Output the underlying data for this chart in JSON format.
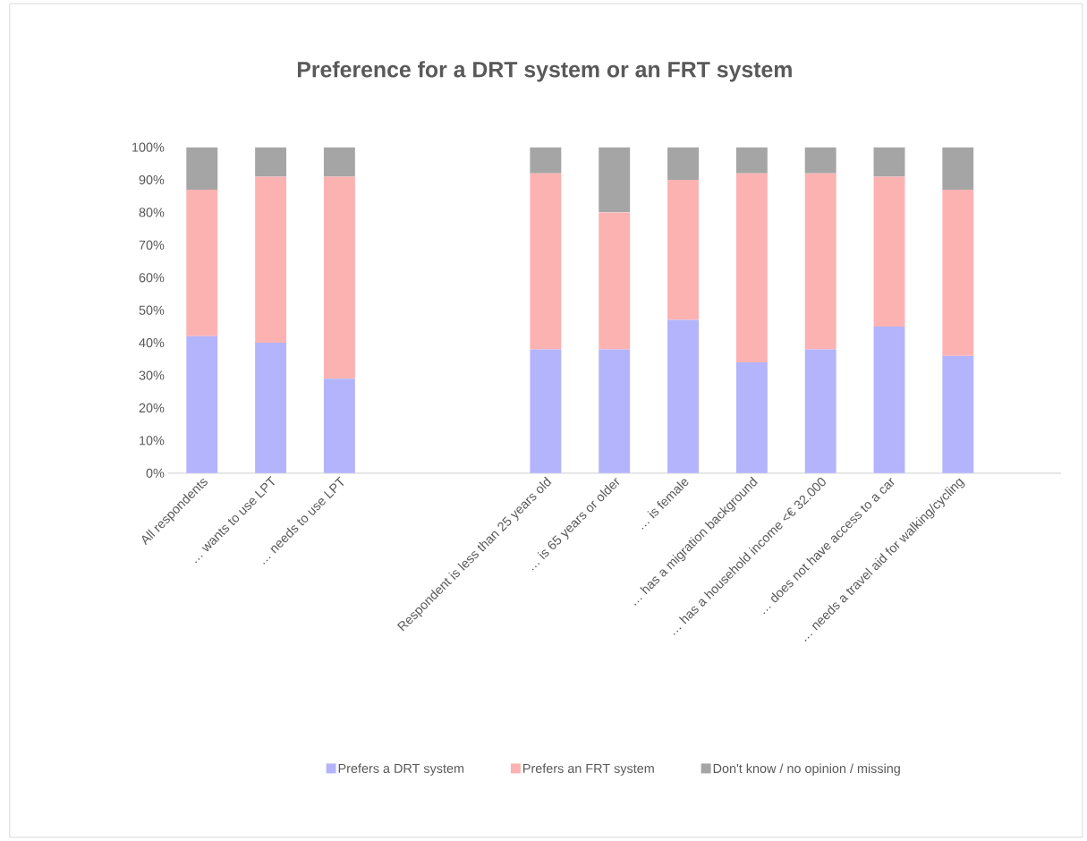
{
  "chart_data": {
    "type": "bar",
    "stacked": true,
    "title": "Preference for a DRT system or an FRT system",
    "categories": [
      "All respondents",
      "… wants to use LPT",
      "… needs to use LPT",
      null,
      null,
      "Respondent is less than 25 years old",
      "… is 65 years or older",
      "… is female",
      "… has a migration background",
      "… has a household income <€ 32.000",
      "… does not have access to a car",
      "… needs a travel aid for walking/cycling",
      null
    ],
    "series": [
      {
        "name": "Prefers a DRT system",
        "color": "#b4b4fc",
        "values": [
          42,
          40,
          29,
          null,
          null,
          38,
          38,
          47,
          34,
          38,
          45,
          36,
          null
        ]
      },
      {
        "name": "Prefers an FRT system",
        "color": "#fdb2b2",
        "values": [
          45,
          51,
          62,
          null,
          null,
          54,
          42,
          43,
          58,
          54,
          46,
          51,
          null
        ]
      },
      {
        "name": "Don't know / no opinion / missing",
        "color": "#a5a5a5",
        "values": [
          13,
          9,
          9,
          null,
          null,
          8,
          20,
          10,
          8,
          8,
          9,
          13,
          null
        ]
      }
    ],
    "ylim": [
      0,
      100
    ],
    "yticks": [
      {
        "value": 0,
        "label": "0%"
      },
      {
        "value": 10,
        "label": "10%"
      },
      {
        "value": 20,
        "label": "20%"
      },
      {
        "value": 30,
        "label": "30%"
      },
      {
        "value": 40,
        "label": "40%"
      },
      {
        "value": 50,
        "label": "50%"
      },
      {
        "value": 60,
        "label": "60%"
      },
      {
        "value": 70,
        "label": "70%"
      },
      {
        "value": 80,
        "label": "80%"
      },
      {
        "value": 90,
        "label": "90%"
      },
      {
        "value": 100,
        "label": "100%"
      }
    ],
    "legend": "bottom"
  }
}
